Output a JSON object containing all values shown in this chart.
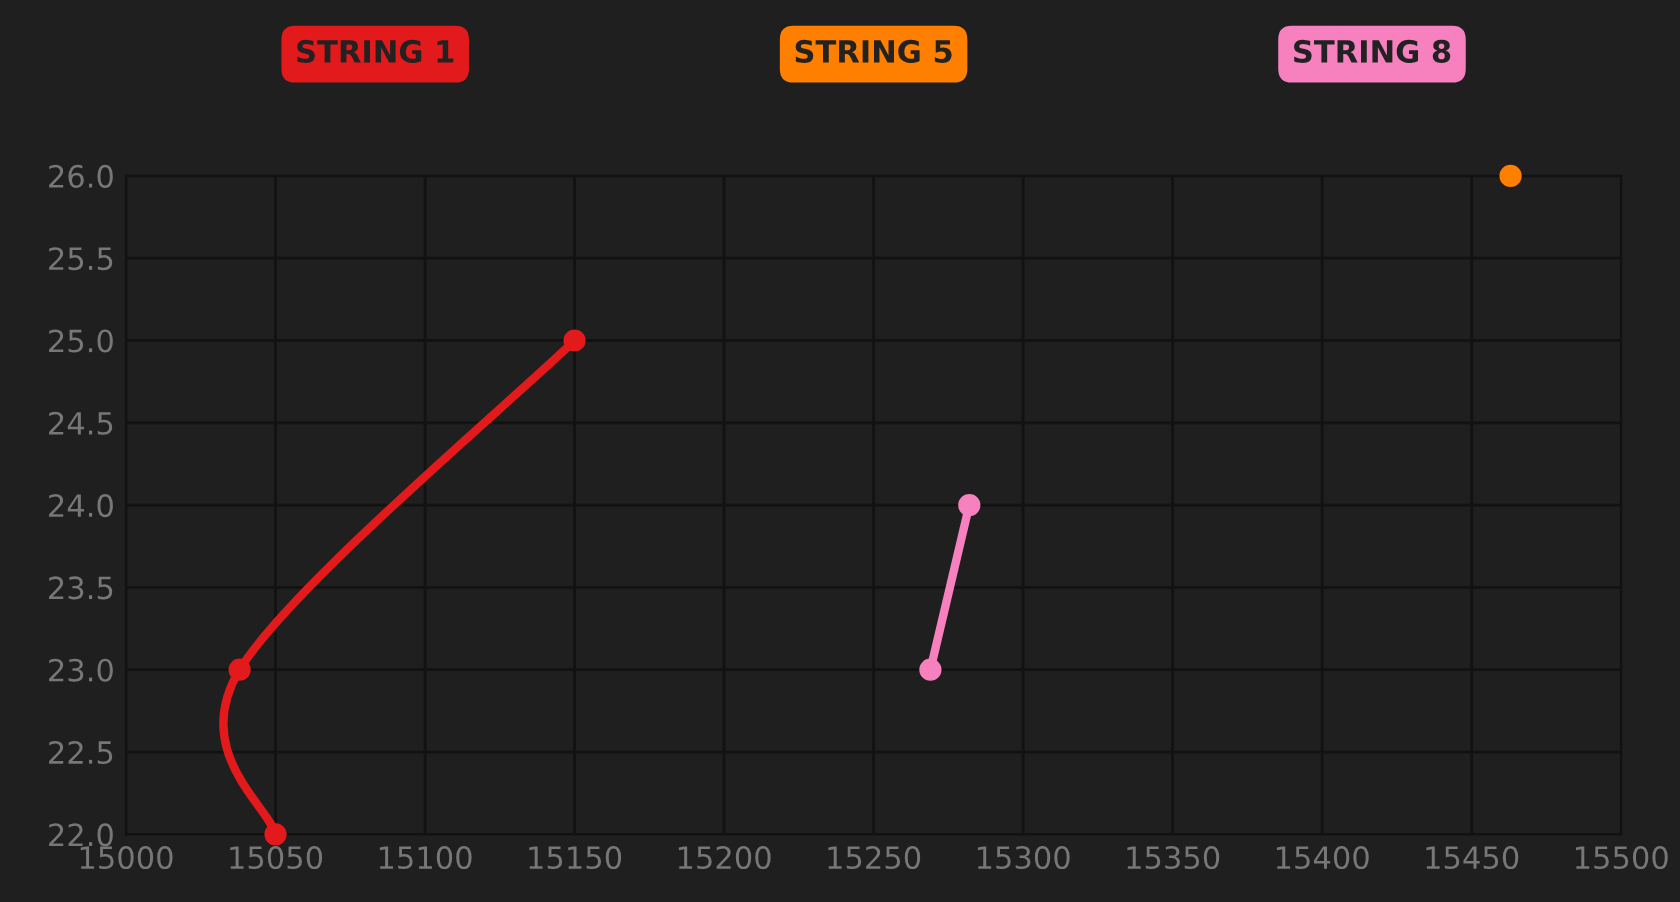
{
  "chart_data": {
    "type": "line",
    "series": [
      {
        "name": "STRING 1",
        "color": "#e31a1c",
        "x": [
          15050,
          15038,
          15150
        ],
        "values": [
          22.0,
          23.0,
          25.0
        ]
      },
      {
        "name": "STRING 5",
        "color": "#ff7f00",
        "x": [
          15463
        ],
        "values": [
          26.0
        ]
      },
      {
        "name": "STRING 8",
        "color": "#f781bf",
        "x": [
          15269,
          15282
        ],
        "values": [
          23.0,
          24.0
        ]
      }
    ],
    "xlim": [
      15000,
      15500
    ],
    "xticks": [
      15000,
      15050,
      15100,
      15150,
      15200,
      15250,
      15300,
      15350,
      15400,
      15450,
      15500
    ],
    "ylim": [
      22.0,
      26.0
    ],
    "yticks": [
      {
        "value": 22.0,
        "label": "22.0"
      },
      {
        "value": 22.5,
        "label": "22.5"
      },
      {
        "value": 23.0,
        "label": "23.0"
      },
      {
        "value": 23.5,
        "label": "23.5"
      },
      {
        "value": 24.0,
        "label": "24.0"
      },
      {
        "value": 24.5,
        "label": "24.5"
      },
      {
        "value": 25.0,
        "label": "25.0"
      },
      {
        "value": 25.5,
        "label": "25.5"
      },
      {
        "value": 26.0,
        "label": "26.0"
      }
    ],
    "grid": true,
    "legend": "top",
    "marker": "circle",
    "line_style": "solid"
  }
}
